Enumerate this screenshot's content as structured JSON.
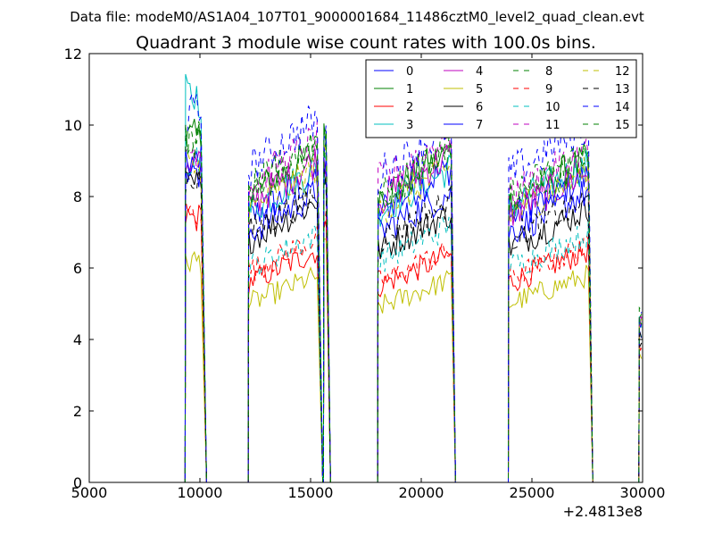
{
  "figure": {
    "suptitle": "Data file: modeM0/AS1A04_107T01_9000001684_11486cztM0_level2_quad_clean.evt"
  },
  "chart_data": {
    "type": "line",
    "title": "Quadrant 3 module wise count rates with 100.0s bins.",
    "xlabel": "",
    "ylabel": "",
    "x_offset_label": "+2.4813e8",
    "xlim": [
      5000,
      30000
    ],
    "ylim": [
      0,
      12
    ],
    "xticks": [
      5000,
      10000,
      15000,
      20000,
      25000,
      30000
    ],
    "yticks": [
      0,
      2,
      4,
      6,
      8,
      10,
      12
    ],
    "grid": false,
    "legend": {
      "placement": "top-right",
      "columns": 4
    },
    "segments": [
      {
        "x": [
          9350,
          10050
        ],
        "drop_to": 10300
      },
      {
        "x": [
          12200,
          15350
        ],
        "drop_to": 15550
      },
      {
        "x": [
          15600,
          15700
        ],
        "drop_to": 15900
      },
      {
        "x": [
          18050,
          21350
        ],
        "drop_to": 21550
      },
      {
        "x": [
          23950,
          27550
        ],
        "drop_to": 27750
      },
      {
        "x": [
          29850,
          29950
        ],
        "drop_to": null
      }
    ],
    "series": [
      {
        "name": "0",
        "color": "#0000ff",
        "dash": "solid",
        "levels": [
          8.6,
          7.4,
          9.2,
          7.6,
          7.4,
          4.3
        ]
      },
      {
        "name": "1",
        "color": "#008000",
        "dash": "solid",
        "levels": [
          9.6,
          8.0,
          9.6,
          8.0,
          7.8,
          4.5
        ]
      },
      {
        "name": "2",
        "color": "#ff0000",
        "dash": "solid",
        "levels": [
          7.4,
          5.6,
          7.0,
          5.5,
          5.6,
          3.7
        ]
      },
      {
        "name": "3",
        "color": "#00bfbf",
        "dash": "solid",
        "levels": [
          10.8,
          7.6,
          9.3,
          7.6,
          7.7,
          4.4
        ]
      },
      {
        "name": "4",
        "color": "#bf00bf",
        "dash": "solid",
        "levels": [
          9.0,
          7.8,
          9.0,
          7.9,
          7.5,
          4.4
        ]
      },
      {
        "name": "5",
        "color": "#bfbf00",
        "dash": "solid",
        "levels": [
          6.2,
          5.0,
          6.5,
          4.9,
          5.0,
          3.5
        ]
      },
      {
        "name": "6",
        "color": "#000000",
        "dash": "solid",
        "levels": [
          8.3,
          6.8,
          8.5,
          6.5,
          6.6,
          4.0
        ]
      },
      {
        "name": "7",
        "color": "#0000ff",
        "dash": "solid",
        "levels": [
          8.9,
          7.0,
          8.8,
          7.0,
          7.0,
          4.2
        ]
      },
      {
        "name": "8",
        "color": "#008000",
        "dash": "dashed",
        "levels": [
          9.4,
          8.2,
          9.4,
          8.0,
          7.8,
          4.6
        ]
      },
      {
        "name": "9",
        "color": "#ff0000",
        "dash": "dashed",
        "levels": [
          7.6,
          5.9,
          7.2,
          5.6,
          5.7,
          3.8
        ]
      },
      {
        "name": "10",
        "color": "#00bfbf",
        "dash": "dashed",
        "levels": [
          9.1,
          6.0,
          8.6,
          6.2,
          6.0,
          4.0
        ]
      },
      {
        "name": "11",
        "color": "#bf00bf",
        "dash": "dashed",
        "levels": [
          9.3,
          8.3,
          9.2,
          8.4,
          8.0,
          4.6
        ]
      },
      {
        "name": "12",
        "color": "#bfbf00",
        "dash": "dashed",
        "levels": [
          8.8,
          7.6,
          9.0,
          7.6,
          7.5,
          4.5
        ]
      },
      {
        "name": "13",
        "color": "#000000",
        "dash": "dashed",
        "levels": [
          8.5,
          7.0,
          8.6,
          6.8,
          6.8,
          4.2
        ]
      },
      {
        "name": "14",
        "color": "#0000ff",
        "dash": "dashed",
        "levels": [
          10.3,
          8.8,
          9.6,
          8.6,
          8.6,
          4.8
        ]
      },
      {
        "name": "15",
        "color": "#008000",
        "dash": "dashed",
        "levels": [
          9.6,
          8.2,
          9.5,
          8.0,
          8.0,
          4.7
        ]
      }
    ]
  }
}
